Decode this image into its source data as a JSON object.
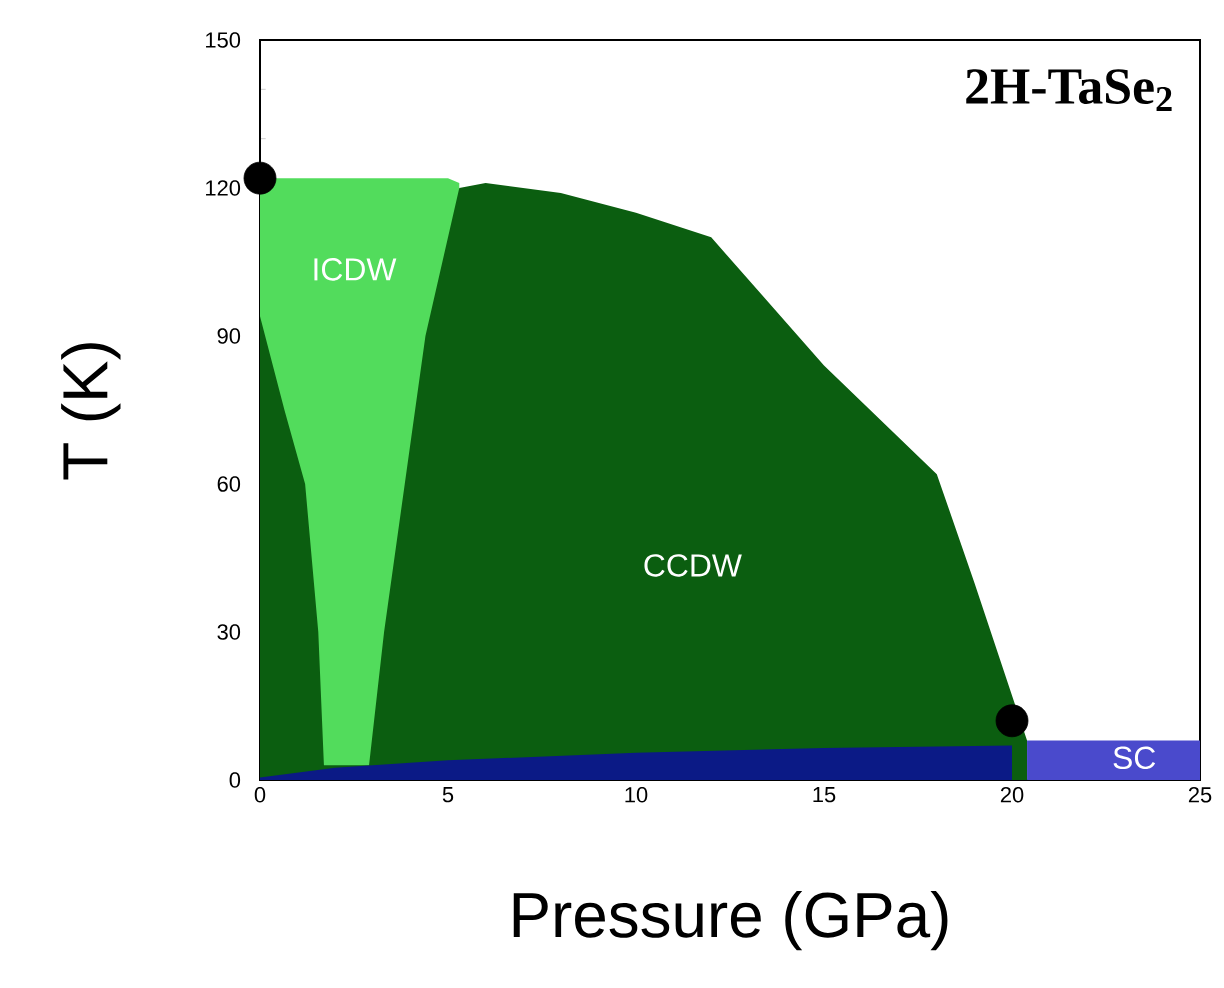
{
  "chart_data": {
    "type": "area",
    "title": "2H-TaSe$_{2}$",
    "xlabel": "Pressure (GPa)",
    "ylabel": "T (K)",
    "xlim": [
      0,
      25
    ],
    "ylim": [
      0,
      150
    ],
    "xticks": [
      0,
      5,
      10,
      15,
      20,
      25
    ],
    "yticks": [
      0,
      30,
      60,
      90,
      120,
      150
    ],
    "grid": false,
    "series": [
      {
        "color": "#52dc5c",
        "x": [
          0,
          1,
          2,
          3,
          4,
          5,
          5.3
        ],
        "values": [
          122,
          122,
          122,
          122,
          122,
          122,
          121
        ]
      },
      {
        "color": "#0b5e10",
        "x": [
          0,
          0.65,
          1.2,
          1.55,
          1.7,
          2.9,
          3.3,
          3.85,
          4.4,
          5.3,
          6,
          8,
          10,
          12,
          15,
          18,
          19,
          20.4
        ],
        "values": [
          94,
          75,
          60,
          30,
          3,
          3,
          30,
          60,
          90,
          120,
          121,
          119,
          115,
          110,
          84,
          62,
          40,
          8
        ]
      },
      {
        "color": "#0b1a86",
        "x": [
          0,
          2,
          5,
          10,
          15,
          20
        ],
        "values": [
          0.5,
          2.5,
          4,
          5.5,
          6.5,
          7
        ]
      },
      {
        "color": "#4a4acc",
        "x": [
          20.4,
          25
        ],
        "values": [
          8,
          8
        ]
      },
      {
        "type": "scatter",
        "marker": "circle",
        "color": "#000000",
        "x": [
          0,
          20
        ],
        "values": [
          122,
          12
        ]
      }
    ],
    "annotations": [
      "ICDW",
      "CCDW",
      "SC"
    ]
  }
}
